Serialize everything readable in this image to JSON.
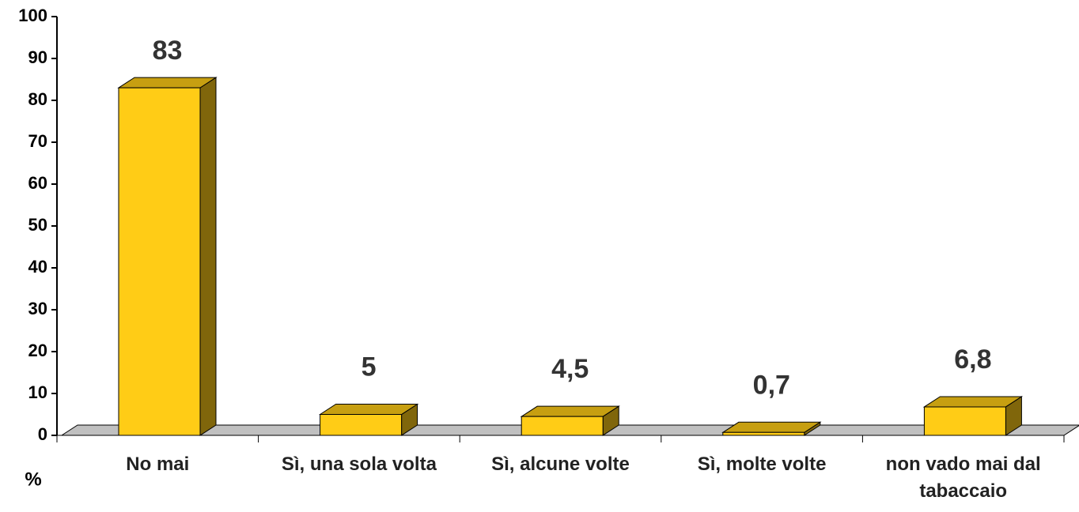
{
  "chart_data": {
    "type": "bar3d",
    "categories": [
      "No mai",
      "Sì, una sola volta",
      "Sì, alcune volte",
      "Sì, molte volte",
      "non vado mai dal tabaccaio"
    ],
    "values": [
      83,
      5,
      4.5,
      0.7,
      6.8
    ],
    "value_labels": [
      "83",
      "5",
      "4,5",
      "0,7",
      "6,8"
    ],
    "ylabel": "%",
    "color": "#FFCC16",
    "ylim": [
      0,
      100
    ],
    "yticks": [
      0,
      10,
      20,
      30,
      40,
      50,
      60,
      70,
      80,
      90,
      100
    ]
  }
}
